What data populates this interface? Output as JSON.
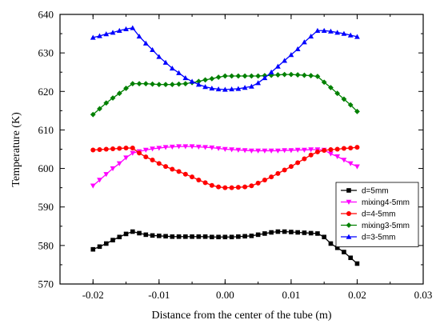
{
  "chart_data": {
    "type": "line",
    "title": "",
    "xlabel": "Distance  from the center of the tube (m)",
    "ylabel": "Temperature (K)",
    "xlim": [
      -0.025,
      0.03
    ],
    "ylim": [
      570,
      640
    ],
    "xticks": [
      "-0.02",
      "-0.01",
      "0.00",
      "0.01",
      "0.02",
      "0.03"
    ],
    "yticks": [
      "570",
      "580",
      "590",
      "600",
      "610",
      "620",
      "630",
      "640"
    ],
    "legend_position": "lower-right",
    "grid": false,
    "series": [
      {
        "name": "d=5mm",
        "color": "#000000",
        "marker": "square",
        "x": [
          -0.02,
          -0.019,
          -0.018,
          -0.017,
          -0.016,
          -0.015,
          -0.014,
          -0.013,
          -0.012,
          -0.011,
          -0.01,
          -0.009,
          -0.008,
          -0.007,
          -0.006,
          -0.005,
          -0.004,
          -0.003,
          -0.002,
          -0.001,
          0.0,
          0.001,
          0.002,
          0.003,
          0.004,
          0.005,
          0.006,
          0.007,
          0.008,
          0.009,
          0.01,
          0.011,
          0.012,
          0.013,
          0.014,
          0.015,
          0.016,
          0.017,
          0.018,
          0.019,
          0.02
        ],
        "y": [
          579.0,
          579.7,
          580.5,
          581.4,
          582.2,
          583.0,
          583.6,
          583.2,
          582.8,
          582.6,
          582.5,
          582.4,
          582.3,
          582.3,
          582.3,
          582.3,
          582.3,
          582.3,
          582.2,
          582.2,
          582.2,
          582.2,
          582.3,
          582.4,
          582.5,
          582.8,
          583.1,
          583.4,
          583.6,
          583.6,
          583.5,
          583.4,
          583.3,
          583.2,
          583.1,
          582.2,
          580.5,
          579.4,
          578.3,
          576.8,
          575.3
        ]
      },
      {
        "name": "mixing4-5mm",
        "color": "#ff00ff",
        "marker": "triangle-down",
        "x": [
          -0.02,
          -0.019,
          -0.018,
          -0.017,
          -0.016,
          -0.015,
          -0.014,
          -0.013,
          -0.012,
          -0.011,
          -0.01,
          -0.009,
          -0.008,
          -0.007,
          -0.006,
          -0.005,
          -0.004,
          -0.003,
          -0.002,
          -0.001,
          0.0,
          0.001,
          0.002,
          0.003,
          0.004,
          0.005,
          0.006,
          0.007,
          0.008,
          0.009,
          0.01,
          0.011,
          0.012,
          0.013,
          0.014,
          0.015,
          0.016,
          0.017,
          0.018,
          0.019,
          0.02
        ],
        "y": [
          595.5,
          597.0,
          598.5,
          600.0,
          601.3,
          602.8,
          604.0,
          604.4,
          604.8,
          605.1,
          605.3,
          605.5,
          605.6,
          605.7,
          605.7,
          605.7,
          605.6,
          605.5,
          605.4,
          605.2,
          605.0,
          604.9,
          604.8,
          604.7,
          604.6,
          604.6,
          604.6,
          604.6,
          604.6,
          604.7,
          604.7,
          604.8,
          604.8,
          604.9,
          604.9,
          604.8,
          603.8,
          603.1,
          602.2,
          601.3,
          600.5
        ]
      },
      {
        "name": "d=4-5mm",
        "color": "#ff0000",
        "marker": "circle",
        "x": [
          -0.02,
          -0.019,
          -0.018,
          -0.017,
          -0.016,
          -0.015,
          -0.014,
          -0.013,
          -0.012,
          -0.011,
          -0.01,
          -0.009,
          -0.008,
          -0.007,
          -0.006,
          -0.005,
          -0.004,
          -0.003,
          -0.002,
          -0.001,
          0.0,
          0.001,
          0.002,
          0.003,
          0.004,
          0.005,
          0.006,
          0.007,
          0.008,
          0.009,
          0.01,
          0.011,
          0.012,
          0.013,
          0.014,
          0.015,
          0.016,
          0.017,
          0.018,
          0.019,
          0.02
        ],
        "y": [
          604.8,
          604.9,
          605.0,
          605.1,
          605.2,
          605.3,
          605.3,
          604.0,
          603.0,
          602.2,
          601.3,
          600.5,
          599.8,
          599.2,
          598.5,
          597.8,
          597.0,
          596.3,
          595.6,
          595.2,
          595.0,
          595.0,
          595.1,
          595.2,
          595.5,
          596.2,
          597.0,
          597.8,
          598.7,
          599.6,
          600.5,
          601.5,
          602.5,
          603.5,
          604.3,
          604.7,
          604.9,
          605.0,
          605.2,
          605.3,
          605.5
        ]
      },
      {
        "name": "mixing3-5mm",
        "color": "#008000",
        "marker": "diamond",
        "x": [
          -0.02,
          -0.019,
          -0.018,
          -0.017,
          -0.016,
          -0.015,
          -0.014,
          -0.013,
          -0.012,
          -0.011,
          -0.01,
          -0.009,
          -0.008,
          -0.007,
          -0.006,
          -0.005,
          -0.004,
          -0.003,
          -0.002,
          -0.001,
          0.0,
          0.001,
          0.002,
          0.003,
          0.004,
          0.005,
          0.006,
          0.007,
          0.008,
          0.009,
          0.01,
          0.011,
          0.012,
          0.013,
          0.014,
          0.015,
          0.016,
          0.017,
          0.018,
          0.019,
          0.02
        ],
        "y": [
          614.0,
          615.5,
          617.0,
          618.3,
          619.5,
          620.8,
          622.0,
          622.0,
          622.0,
          621.9,
          621.8,
          621.8,
          621.8,
          621.9,
          622.0,
          622.3,
          622.6,
          623.0,
          623.3,
          623.7,
          624.0,
          624.0,
          624.0,
          624.0,
          624.0,
          624.0,
          624.1,
          624.2,
          624.3,
          624.4,
          624.4,
          624.3,
          624.2,
          624.1,
          623.9,
          622.4,
          621.0,
          619.5,
          618.0,
          616.5,
          614.8
        ]
      },
      {
        "name": "d=3-5mm",
        "color": "#0000ff",
        "marker": "triangle-up",
        "x": [
          -0.02,
          -0.019,
          -0.018,
          -0.017,
          -0.016,
          -0.015,
          -0.014,
          -0.013,
          -0.012,
          -0.011,
          -0.01,
          -0.009,
          -0.008,
          -0.007,
          -0.006,
          -0.005,
          -0.004,
          -0.003,
          -0.002,
          -0.001,
          0.0,
          0.001,
          0.002,
          0.003,
          0.004,
          0.005,
          0.006,
          0.007,
          0.008,
          0.009,
          0.01,
          0.011,
          0.012,
          0.013,
          0.014,
          0.015,
          0.016,
          0.017,
          0.018,
          0.019,
          0.02
        ],
        "y": [
          634.0,
          634.4,
          634.9,
          635.3,
          635.8,
          636.2,
          636.5,
          634.3,
          632.5,
          630.8,
          629.0,
          627.5,
          626.0,
          624.8,
          623.5,
          622.6,
          621.8,
          621.2,
          620.8,
          620.6,
          620.5,
          620.6,
          620.7,
          621.0,
          621.3,
          622.2,
          623.5,
          625.0,
          626.5,
          628.0,
          629.5,
          631.0,
          632.8,
          634.3,
          635.8,
          635.8,
          635.6,
          635.3,
          635.0,
          634.6,
          634.2
        ]
      }
    ]
  }
}
